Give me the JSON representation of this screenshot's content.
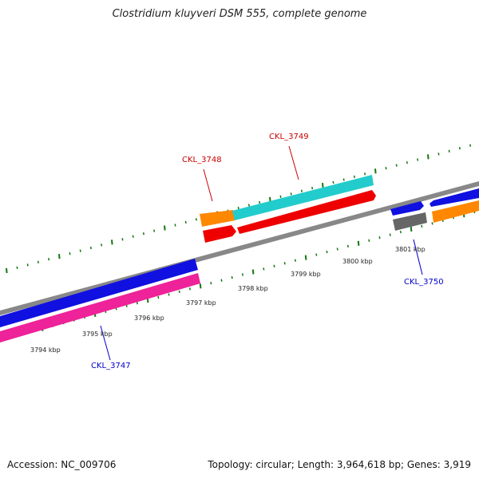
{
  "title": "Clostridium kluyveri DSM 555, complete genome",
  "footer": {
    "accession": "Accession: NC_009706",
    "stats": "Topology: circular; Length: 3,964,618 bp; Genes: 3,919"
  },
  "scale_labels": [
    "3794 kbp",
    "3795 kbp",
    "3796 kbp",
    "3797 kbp",
    "3798 kbp",
    "3799 kbp",
    "3800 kbp",
    "3801 kbp"
  ],
  "gene_labels": [
    {
      "name": "CKL_3748",
      "color": "#cc0000"
    },
    {
      "name": "CKL_3749",
      "color": "#cc0000"
    },
    {
      "name": "CKL_3747",
      "color": "#0000cc"
    },
    {
      "name": "CKL_3750",
      "color": "#0000cc"
    }
  ],
  "colors": {
    "backbone": "#888888",
    "blue": "#1010e0",
    "pink": "#ee2299",
    "orange": "#ff8800",
    "cyan": "#22cccc",
    "red": "#ee0000",
    "gray": "#666666",
    "tick": "#117711"
  }
}
